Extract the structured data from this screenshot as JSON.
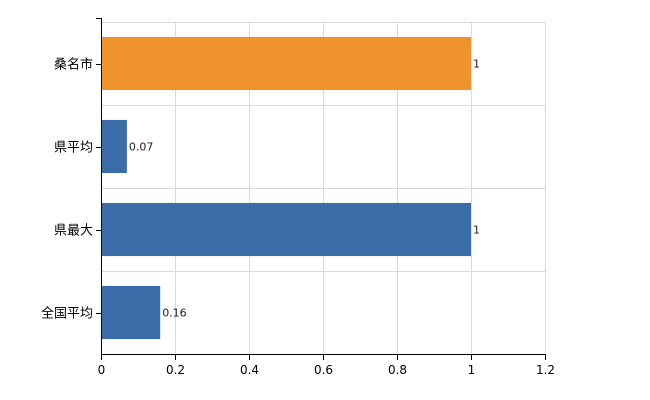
{
  "chart_data": {
    "type": "bar",
    "orientation": "horizontal",
    "categories": [
      "桑名市",
      "県平均",
      "県最大",
      "全国平均"
    ],
    "values": [
      1,
      0.07,
      1,
      0.16
    ],
    "data_labels": [
      "1",
      "0.07",
      "1",
      "0.16"
    ],
    "bar_colors": [
      "#f0922e",
      "#3a6ca8",
      "#3a6ca8",
      "#3a6ca8"
    ],
    "xlim": [
      0,
      1.2
    ],
    "xticks": [
      0,
      0.2,
      0.4,
      0.6,
      0.8,
      1,
      1.2
    ],
    "xtick_labels": [
      "0",
      "0.2",
      "0.4",
      "0.6",
      "0.8",
      "1",
      "1.2"
    ],
    "grid": true,
    "legend": "none",
    "title": "",
    "xlabel": "",
    "ylabel": ""
  }
}
